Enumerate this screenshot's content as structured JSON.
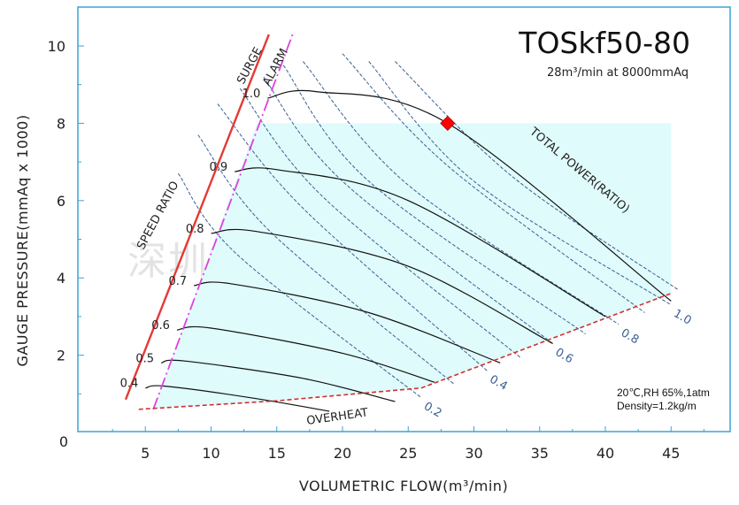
{
  "chart_data": {
    "type": "line",
    "title": "TOSkf50-80",
    "subtitle": "28m³/min at 8000mmAq",
    "xlabel": "VOLUMETRIC FLOW(m³/min)",
    "ylabel": "GAUGE PRESSURE(mmAq x 1000)",
    "xlim": [
      0,
      50
    ],
    "ylim": [
      0,
      11
    ],
    "x_ticks": [
      "5",
      "10",
      "15",
      "20",
      "25",
      "30",
      "35",
      "40",
      "45"
    ],
    "y_ticks": [
      "2",
      "4",
      "6",
      "8",
      "10"
    ],
    "origin_label": "0",
    "speed_ratio_curves": [
      {
        "label": "1.0",
        "points": [
          [
            14.3,
            8.65
          ],
          [
            18,
            8.82
          ],
          [
            28,
            8.0
          ],
          [
            45,
            3.4
          ]
        ]
      },
      {
        "label": "0.9",
        "points": [
          [
            11.8,
            6.75
          ],
          [
            15,
            6.8
          ],
          [
            25,
            6.0
          ],
          [
            40,
            3.0
          ]
        ]
      },
      {
        "label": "0.8",
        "points": [
          [
            10,
            5.15
          ],
          [
            13.5,
            5.2
          ],
          [
            25,
            4.3
          ],
          [
            36,
            2.3
          ]
        ]
      },
      {
        "label": "0.7",
        "points": [
          [
            8.7,
            3.8
          ],
          [
            11.5,
            3.85
          ],
          [
            22,
            3.1
          ],
          [
            32,
            1.8
          ]
        ]
      },
      {
        "label": "0.6",
        "points": [
          [
            7.4,
            2.65
          ],
          [
            10,
            2.7
          ],
          [
            20,
            2.05
          ],
          [
            27,
            1.3
          ]
        ]
      },
      {
        "label": "0.5",
        "points": [
          [
            6.2,
            1.8
          ],
          [
            8,
            1.85
          ],
          [
            17,
            1.4
          ],
          [
            24,
            0.8
          ]
        ]
      },
      {
        "label": "0.4",
        "points": [
          [
            5.0,
            1.15
          ],
          [
            6.5,
            1.2
          ],
          [
            13,
            0.9
          ],
          [
            19,
            0.55
          ]
        ]
      }
    ],
    "total_power_curves": [
      {
        "label": "1.0",
        "points": [
          [
            22,
            9.6
          ],
          [
            30,
            6.5
          ],
          [
            45,
            3.3
          ]
        ]
      },
      {
        "label": "0.8",
        "points": [
          [
            17,
            9.6
          ],
          [
            25,
            6.4
          ],
          [
            41,
            2.8
          ]
        ]
      },
      {
        "label": "0.6",
        "points": [
          [
            14,
            9.2
          ],
          [
            20,
            6.5
          ],
          [
            36,
            2.3
          ]
        ]
      },
      {
        "label": "0.4",
        "points": [
          [
            10.5,
            8.5
          ],
          [
            17,
            5.8
          ],
          [
            31,
            1.6
          ]
        ]
      },
      {
        "label": "0.2",
        "points": [
          [
            7.5,
            6.7
          ],
          [
            12,
            4.6
          ],
          [
            26,
            0.9
          ]
        ]
      }
    ],
    "surge_line": [
      [
        3.5,
        0.85
      ],
      [
        14.4,
        10.3
      ]
    ],
    "alarm_line": [
      [
        5.6,
        0.6
      ],
      [
        16.2,
        10.3
      ]
    ],
    "overheat_line": [
      [
        4.5,
        0.6
      ],
      [
        15,
        0.82
      ],
      [
        26,
        1.15
      ],
      [
        45,
        3.6
      ]
    ],
    "operating_point": [
      28,
      8.0
    ],
    "annotations": [
      "SURGE",
      "ALARM",
      "SPEED RATIO",
      "TOTAL POWER(RATIO)",
      "OVERHEAT"
    ],
    "conditions": [
      "20℃,RH 65%,1atm",
      "Density=1.2kg/m"
    ],
    "watermark": "深圳拓思环保设备有限公司",
    "colors": {
      "surge": "#e53935",
      "alarm": "#e040e0",
      "overheat": "#d32f2f",
      "power": "#3a5f95",
      "region": "#e0fbfb",
      "point": "#ff0000"
    },
    "grid": false
  }
}
